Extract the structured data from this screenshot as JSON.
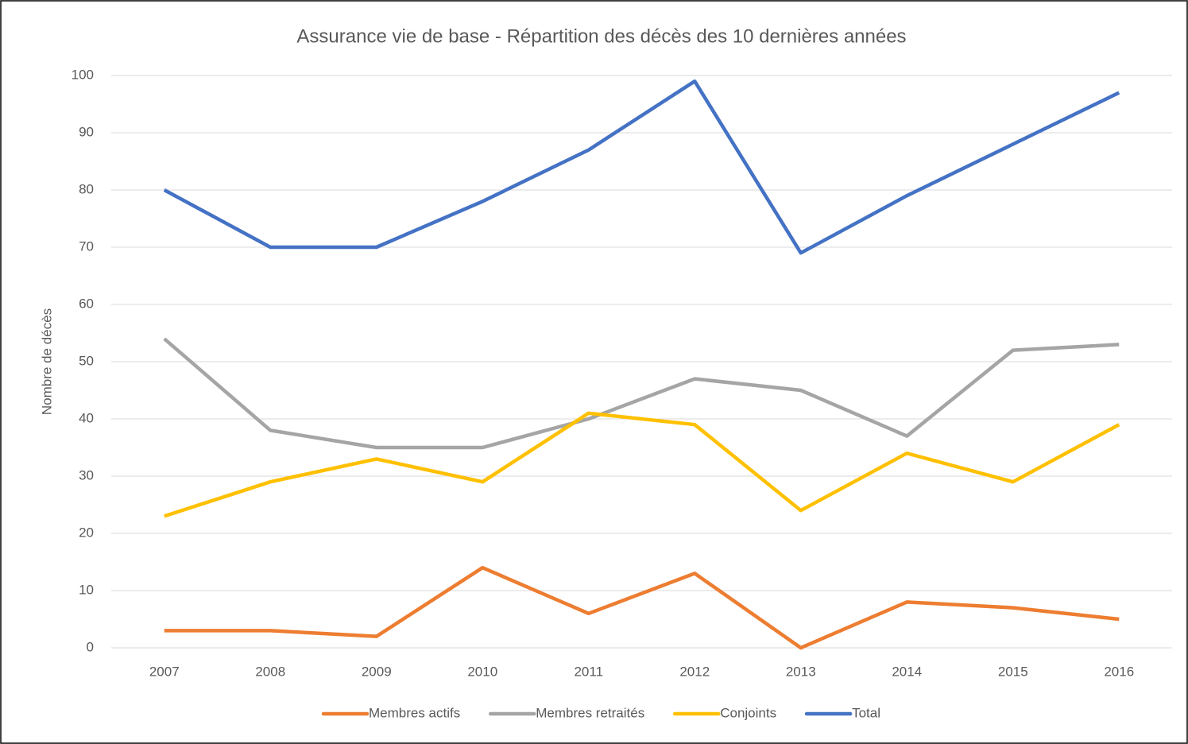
{
  "chart_data": {
    "type": "line",
    "title": "Assurance vie de base - Répartition des décès des 10 dernières années",
    "y_label": "Nombre de décès",
    "categories": [
      "2007",
      "2008",
      "2009",
      "2010",
      "2011",
      "2012",
      "2013",
      "2014",
      "2015",
      "2016"
    ],
    "series": [
      {
        "name": "Membres actifs",
        "color": "#ed7d31",
        "values": [
          3,
          3,
          2,
          14,
          6,
          13,
          0,
          8,
          7,
          5
        ]
      },
      {
        "name": "Membres retraités",
        "color": "#a5a5a5",
        "values": [
          54,
          38,
          35,
          35,
          40,
          47,
          45,
          37,
          52,
          53
        ]
      },
      {
        "name": "Conjoints",
        "color": "#ffc000",
        "values": [
          23,
          29,
          33,
          29,
          41,
          39,
          24,
          34,
          29,
          39
        ]
      },
      {
        "name": "Total",
        "color": "#4472c4",
        "values": [
          80,
          70,
          70,
          78,
          87,
          99,
          69,
          79,
          88,
          97
        ]
      }
    ],
    "ylim": [
      0,
      100
    ],
    "yticks": [
      0,
      10,
      20,
      30,
      40,
      50,
      60,
      70,
      80,
      90,
      100
    ],
    "grid": true,
    "legend": "bottom"
  }
}
